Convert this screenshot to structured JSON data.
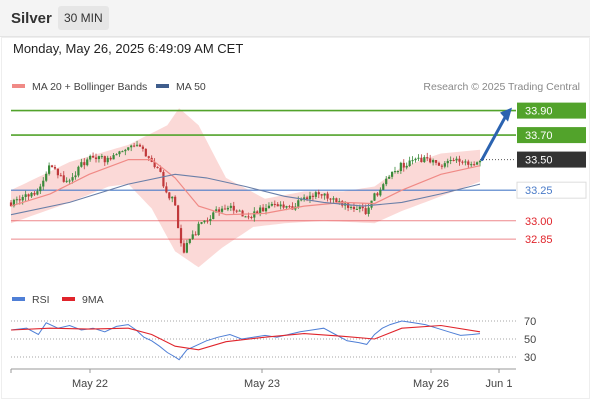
{
  "header": {
    "title": "Silver",
    "timeframe": "30 MIN"
  },
  "timestamp": "Monday, May 26, 2025 6:49:09 AM CET",
  "legend": [
    {
      "label": "MA 20 + Bollinger Bands",
      "color": "#f08a86"
    },
    {
      "label": "MA 50",
      "color": "#3f5d8c"
    }
  ],
  "rsi_legend": [
    {
      "label": "RSI",
      "color": "#4f7fd6"
    },
    {
      "label": "9MA",
      "color": "#e0242b"
    }
  ],
  "credit": "Research © 2025 Trading Central",
  "chart_data": {
    "type": "candlestick",
    "y_range": [
      32.5,
      34.15
    ],
    "levels": [
      {
        "value": 33.9,
        "label": "33.90",
        "style": "green-line",
        "color": "#52a32b"
      },
      {
        "value": 33.7,
        "label": "33.70",
        "style": "green-line",
        "color": "#52a32b"
      },
      {
        "value": 33.5,
        "label": "33.50",
        "style": "current",
        "color": "#333333"
      },
      {
        "value": 33.25,
        "label": "33.25",
        "style": "blue-line",
        "color": "#4a7bc8"
      },
      {
        "value": 33.0,
        "label": "33.00",
        "style": "red-line",
        "color": "#e0242b"
      },
      {
        "value": 32.85,
        "label": "32.85",
        "style": "red-line",
        "color": "#e0242b"
      }
    ],
    "arrow": {
      "from": 33.5,
      "to": 33.9,
      "color": "#2b63b0"
    },
    "x_ticks": [
      "May 22",
      "May 23",
      "May 26",
      "Jun 1"
    ],
    "price_path": [
      [
        0,
        33.15
      ],
      [
        4,
        33.18
      ],
      [
        10,
        33.2
      ],
      [
        16,
        33.3
      ],
      [
        20,
        33.45
      ],
      [
        25,
        33.38
      ],
      [
        30,
        33.3
      ],
      [
        36,
        33.45
      ],
      [
        42,
        33.52
      ],
      [
        48,
        33.5
      ],
      [
        54,
        33.55
      ],
      [
        60,
        33.62
      ],
      [
        64,
        33.65
      ],
      [
        68,
        33.55
      ],
      [
        72,
        33.5
      ],
      [
        76,
        33.4
      ],
      [
        80,
        33.2
      ],
      [
        84,
        33.15
      ],
      [
        86,
        32.9
      ],
      [
        88,
        32.75
      ],
      [
        92,
        32.85
      ],
      [
        96,
        32.95
      ],
      [
        100,
        33.02
      ],
      [
        106,
        33.08
      ],
      [
        112,
        33.1
      ],
      [
        118,
        33.05
      ],
      [
        124,
        33.05
      ],
      [
        130,
        33.1
      ],
      [
        136,
        33.12
      ],
      [
        142,
        33.1
      ],
      [
        148,
        33.15
      ],
      [
        154,
        33.2
      ],
      [
        160,
        33.22
      ],
      [
        166,
        33.18
      ],
      [
        172,
        33.12
      ],
      [
        178,
        33.1
      ],
      [
        182,
        33.05
      ],
      [
        186,
        33.2
      ],
      [
        190,
        33.3
      ],
      [
        194,
        33.38
      ],
      [
        200,
        33.45
      ],
      [
        206,
        33.48
      ],
      [
        212,
        33.5
      ],
      [
        218,
        33.45
      ],
      [
        224,
        33.5
      ],
      [
        230,
        33.48
      ],
      [
        236,
        33.46
      ],
      [
        240,
        33.48
      ]
    ],
    "ma20_path": [
      [
        0,
        33.12
      ],
      [
        20,
        33.22
      ],
      [
        40,
        33.38
      ],
      [
        60,
        33.5
      ],
      [
        72,
        33.5
      ],
      [
        84,
        33.35
      ],
      [
        96,
        33.12
      ],
      [
        110,
        33.05
      ],
      [
        130,
        33.06
      ],
      [
        150,
        33.12
      ],
      [
        170,
        33.15
      ],
      [
        186,
        33.14
      ],
      [
        200,
        33.25
      ],
      [
        220,
        33.38
      ],
      [
        240,
        33.45
      ]
    ],
    "ma50_path": [
      [
        0,
        33.05
      ],
      [
        30,
        33.15
      ],
      [
        60,
        33.3
      ],
      [
        84,
        33.38
      ],
      [
        100,
        33.35
      ],
      [
        120,
        33.28
      ],
      [
        140,
        33.2
      ],
      [
        160,
        33.15
      ],
      [
        180,
        33.12
      ],
      [
        200,
        33.15
      ],
      [
        220,
        33.22
      ],
      [
        240,
        33.3
      ]
    ],
    "bb_upper": [
      [
        0,
        33.25
      ],
      [
        30,
        33.48
      ],
      [
        60,
        33.62
      ],
      [
        80,
        33.78
      ],
      [
        86,
        33.92
      ],
      [
        96,
        33.78
      ],
      [
        110,
        33.35
      ],
      [
        130,
        33.18
      ],
      [
        150,
        33.24
      ],
      [
        170,
        33.24
      ],
      [
        186,
        33.28
      ],
      [
        200,
        33.44
      ],
      [
        220,
        33.55
      ],
      [
        240,
        33.58
      ]
    ],
    "bb_lower": [
      [
        0,
        32.98
      ],
      [
        30,
        33.15
      ],
      [
        50,
        33.28
      ],
      [
        60,
        33.3
      ],
      [
        72,
        33.1
      ],
      [
        84,
        32.75
      ],
      [
        96,
        32.62
      ],
      [
        108,
        32.78
      ],
      [
        124,
        32.95
      ],
      [
        140,
        32.98
      ],
      [
        160,
        33.0
      ],
      [
        186,
        32.98
      ],
      [
        200,
        33.08
      ],
      [
        220,
        33.2
      ],
      [
        240,
        33.32
      ]
    ],
    "rsi": {
      "levels": [
        70,
        50,
        30
      ],
      "y_range": [
        20,
        80
      ],
      "rsi_path": [
        [
          0,
          60
        ],
        [
          8,
          62
        ],
        [
          14,
          55
        ],
        [
          18,
          68
        ],
        [
          24,
          62
        ],
        [
          30,
          65
        ],
        [
          36,
          60
        ],
        [
          42,
          62
        ],
        [
          48,
          58
        ],
        [
          54,
          64
        ],
        [
          60,
          66
        ],
        [
          64,
          60
        ],
        [
          68,
          52
        ],
        [
          72,
          48
        ],
        [
          76,
          42
        ],
        [
          80,
          35
        ],
        [
          84,
          30
        ],
        [
          86,
          27
        ],
        [
          90,
          38
        ],
        [
          96,
          44
        ],
        [
          100,
          48
        ],
        [
          106,
          52
        ],
        [
          112,
          55
        ],
        [
          118,
          50
        ],
        [
          124,
          52
        ],
        [
          130,
          54
        ],
        [
          136,
          52
        ],
        [
          142,
          55
        ],
        [
          148,
          58
        ],
        [
          154,
          60
        ],
        [
          160,
          62
        ],
        [
          166,
          55
        ],
        [
          172,
          48
        ],
        [
          178,
          46
        ],
        [
          182,
          44
        ],
        [
          186,
          55
        ],
        [
          190,
          62
        ],
        [
          194,
          66
        ],
        [
          200,
          70
        ],
        [
          206,
          68
        ],
        [
          212,
          66
        ],
        [
          218,
          62
        ],
        [
          224,
          58
        ],
        [
          230,
          54
        ],
        [
          236,
          55
        ],
        [
          240,
          56
        ]
      ],
      "ma_path": [
        [
          0,
          60
        ],
        [
          20,
          62
        ],
        [
          40,
          61
        ],
        [
          60,
          62
        ],
        [
          72,
          55
        ],
        [
          84,
          42
        ],
        [
          96,
          38
        ],
        [
          110,
          47
        ],
        [
          130,
          52
        ],
        [
          150,
          56
        ],
        [
          170,
          53
        ],
        [
          186,
          50
        ],
        [
          200,
          62
        ],
        [
          220,
          65
        ],
        [
          240,
          58
        ]
      ]
    }
  }
}
